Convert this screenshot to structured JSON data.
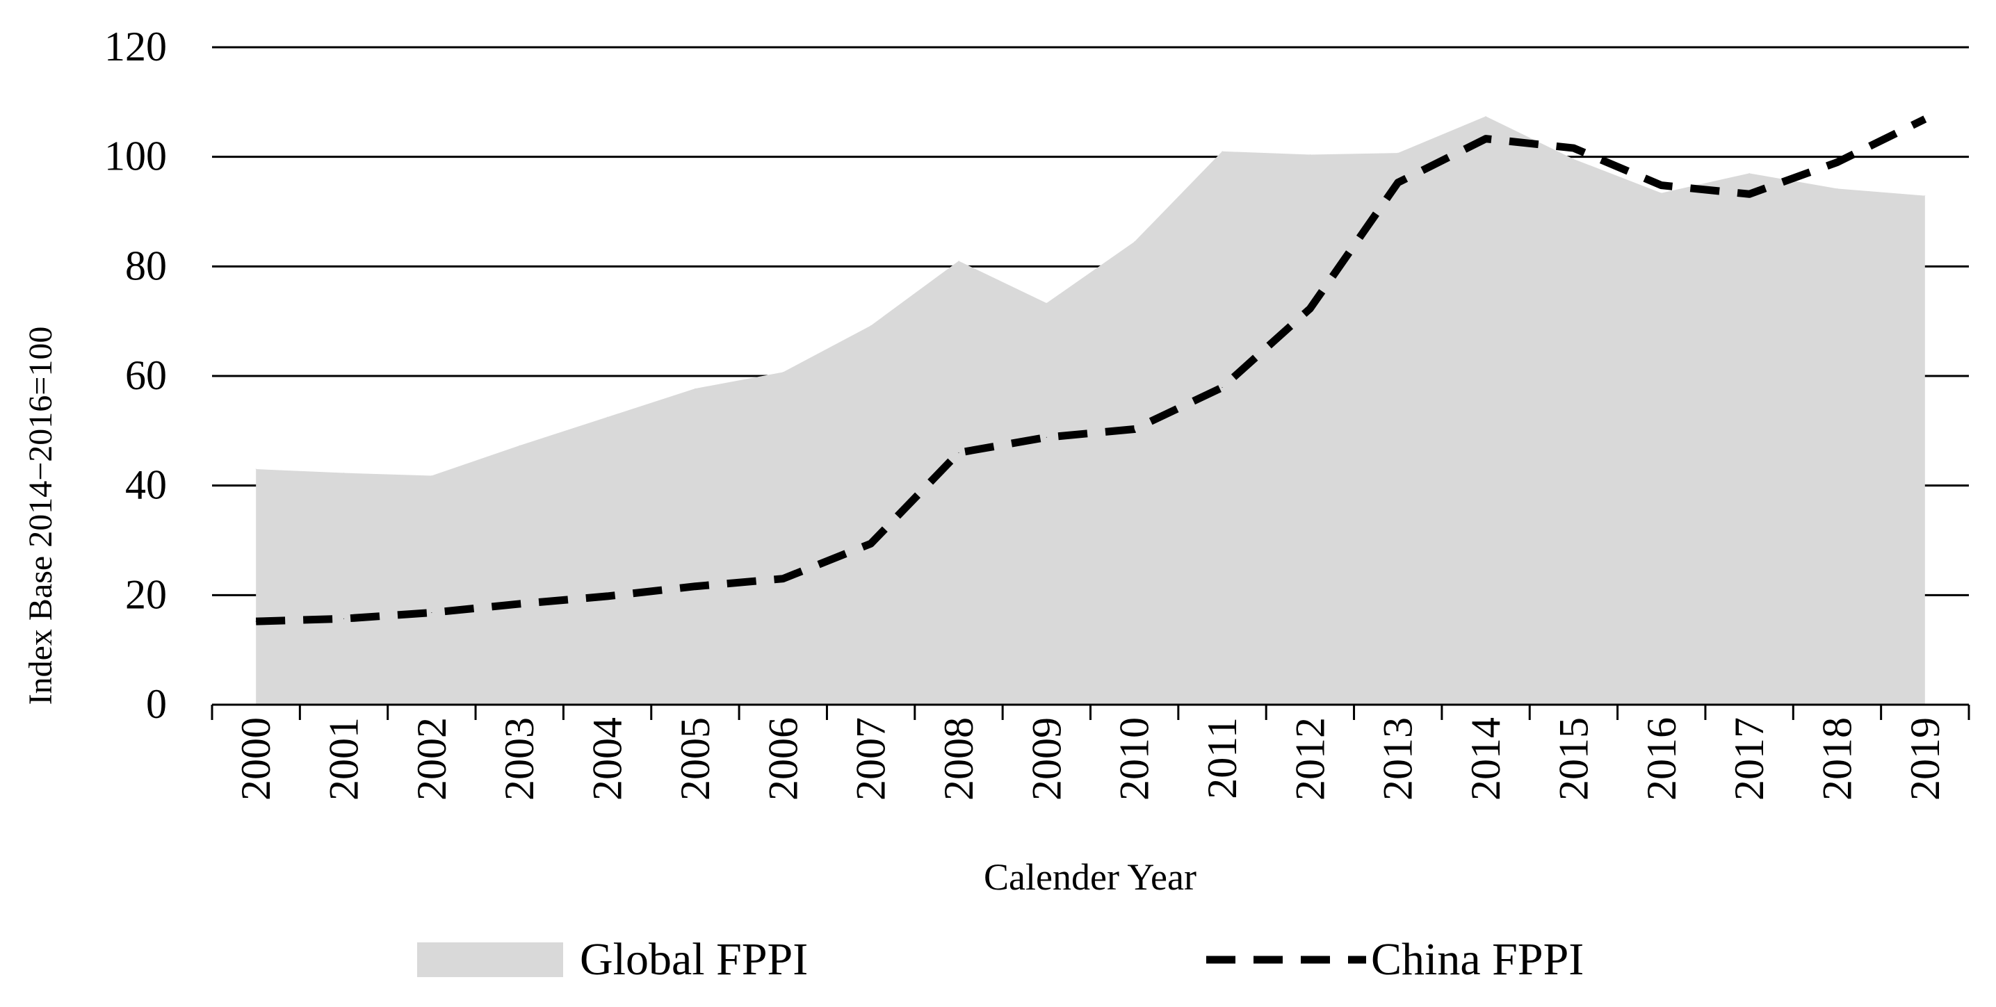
{
  "chart_data": {
    "type": "area",
    "title": "",
    "xlabel": "Calender Year",
    "ylabel": "Index Base 2014−2016=100",
    "ylim": [
      0,
      120
    ],
    "yticks": [
      0,
      20,
      40,
      60,
      80,
      100,
      120
    ],
    "grid": true,
    "legend_position": "bottom",
    "categories": [
      "2000",
      "2001",
      "2002",
      "2003",
      "2004",
      "2005",
      "2006",
      "2007",
      "2008",
      "2009",
      "2010",
      "2011",
      "2012",
      "2013",
      "2014",
      "2015",
      "2016",
      "2017",
      "2018",
      "2019"
    ],
    "series": [
      {
        "name": "Global FPPI",
        "style": "filled-area",
        "color": "#d9d9d9",
        "values": [
          43.0,
          42.3,
          41.8,
          47.3,
          52.5,
          57.7,
          60.7,
          69.2,
          81.0,
          73.3,
          84.5,
          101.0,
          100.4,
          100.7,
          107.4,
          99.6,
          93.4,
          97.0,
          94.2,
          92.9
        ]
      },
      {
        "name": "China FPPI",
        "style": "dashed-line",
        "color": "#000000",
        "values": [
          15.2,
          15.7,
          16.8,
          18.4,
          19.8,
          21.6,
          23.0,
          29.4,
          46.0,
          48.8,
          50.3,
          57.9,
          72.3,
          95.3,
          103.3,
          101.6,
          94.8,
          93.2,
          99.0,
          106.9
        ]
      }
    ]
  }
}
